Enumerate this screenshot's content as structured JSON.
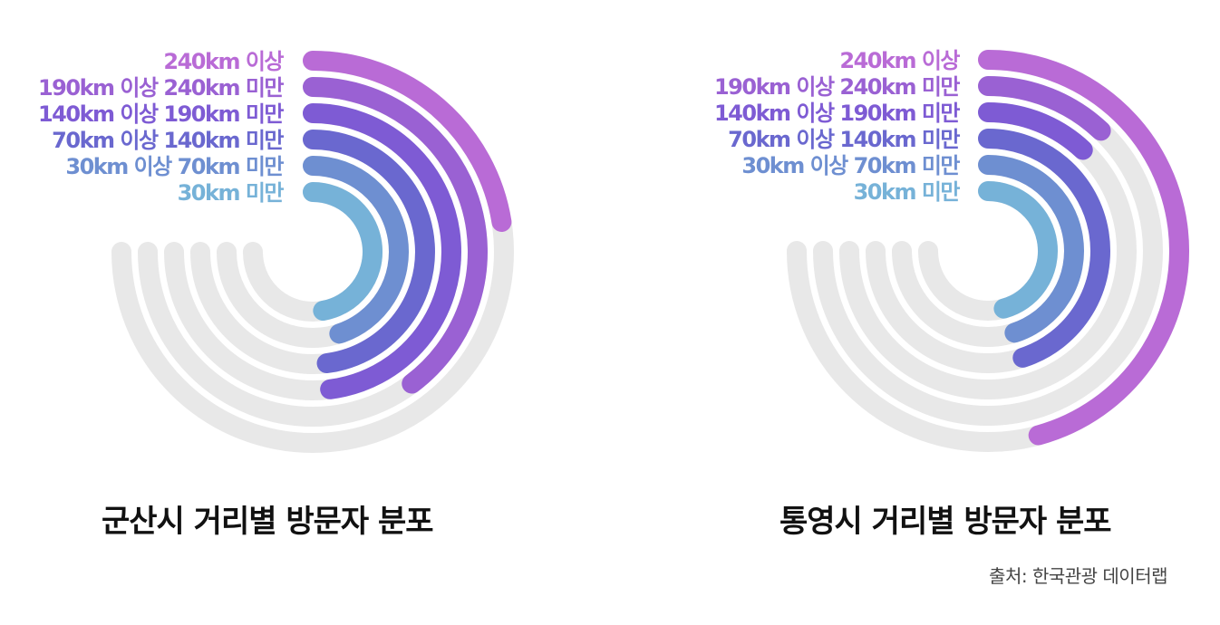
{
  "colors": {
    "track": "#e8e8e8",
    "series": [
      "#b96bd6",
      "#9a61d3",
      "#7e5bd4",
      "#6a68cf",
      "#6e8fd1",
      "#76b2d8"
    ]
  },
  "chart_data": [
    {
      "type": "radial-bar",
      "title": "군산시 거리별 방문자 분포",
      "categories": [
        "240km 이상",
        "190km 이상 240km 미만",
        "140km 이상 190km 미만",
        "70km 이상 140km 미만",
        "30km 이상 70km 미만",
        "30km 미만"
      ],
      "values": [
        30,
        53,
        64,
        64,
        60,
        63
      ],
      "max": 100,
      "unit": "%"
    },
    {
      "type": "radial-bar",
      "title": "통영시 거리별 방문자 분포",
      "categories": [
        "240km 이상",
        "190km 이상 240km 미만",
        "140km 이상 190km 미만",
        "70km 이상 140km 미만",
        "30km 이상 70km 미만",
        "30km 미만"
      ],
      "values": [
        61,
        16,
        16,
        60,
        60,
        61
      ],
      "max": 100,
      "unit": "%"
    }
  ],
  "source": "출처: 한국관광 데이터랩"
}
